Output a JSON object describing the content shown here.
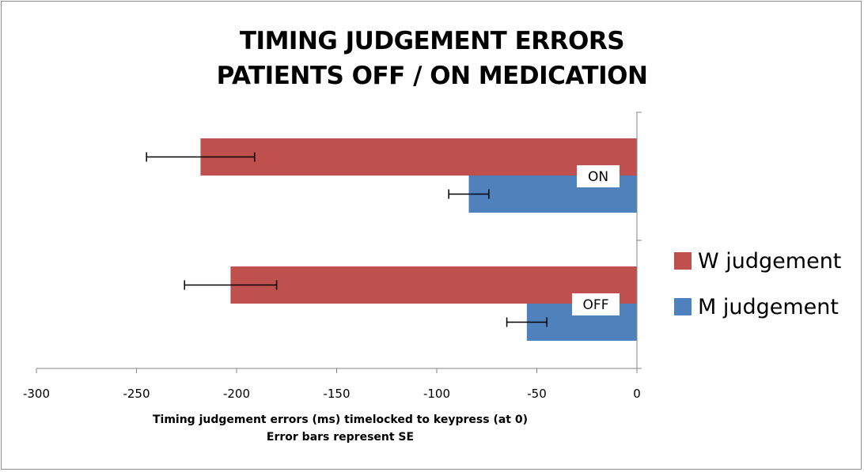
{
  "title_line1": "TIMING JUDGEMENT ERRORS",
  "title_line2": "PATIENTS OFF / ON MEDICATION",
  "caption_line1": "Timing judgement errors (ms) timelocked to keypress (at 0)",
  "caption_line2": "Error bars represent SE",
  "chart_data": {
    "type": "bar",
    "orientation": "horizontal",
    "title": "TIMING JUDGEMENT ERRORS\nPATIENTS OFF / ON MEDICATION",
    "xlabel": "Timing judgement errors (ms) timelocked to keypress (at 0)",
    "categories": [
      "ON",
      "OFF"
    ],
    "series": [
      {
        "name": "W judgement",
        "color": "#c0504d",
        "values": [
          -218,
          -203
        ],
        "error": [
          27,
          23
        ]
      },
      {
        "name": "M judgement",
        "color": "#4f81bd",
        "values": [
          -84,
          -55
        ],
        "error": [
          10,
          10
        ]
      }
    ],
    "xlim": [
      -300,
      0
    ],
    "xticks": [
      -300,
      -250,
      -200,
      -150,
      -100,
      -50,
      0
    ],
    "legend_position": "right",
    "grid": false
  }
}
